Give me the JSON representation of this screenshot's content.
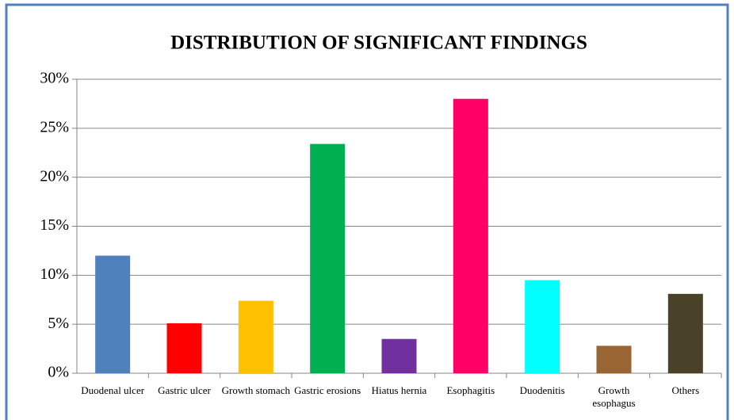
{
  "chart_data": {
    "type": "bar",
    "title": "DISTRIBUTION OF SIGNIFICANT FINDINGS",
    "categories": [
      "Duodenal ulcer",
      "Gastric ulcer",
      "Growth stomach",
      "Gastric erosions",
      "Hiatus hernia",
      "Esophagitis",
      "Duodenitis",
      "Growth esophagus",
      "Others"
    ],
    "values": [
      12.0,
      5.1,
      7.4,
      23.4,
      3.5,
      28.0,
      9.5,
      2.8,
      8.1
    ],
    "colors": [
      "#4f81bd",
      "#ff0000",
      "#ffc000",
      "#00b050",
      "#7030a0",
      "#ff0066",
      "#00ffff",
      "#996633",
      "#4a4228"
    ],
    "ylim": [
      0,
      30
    ],
    "yticks": [
      {
        "value": 0,
        "label": "0%"
      },
      {
        "value": 5,
        "label": "5%"
      },
      {
        "value": 10,
        "label": "10%"
      },
      {
        "value": 15,
        "label": "15%"
      },
      {
        "value": 20,
        "label": "20%"
      },
      {
        "value": 25,
        "label": "25%"
      },
      {
        "value": 30,
        "label": "30%"
      }
    ],
    "grid": true
  }
}
